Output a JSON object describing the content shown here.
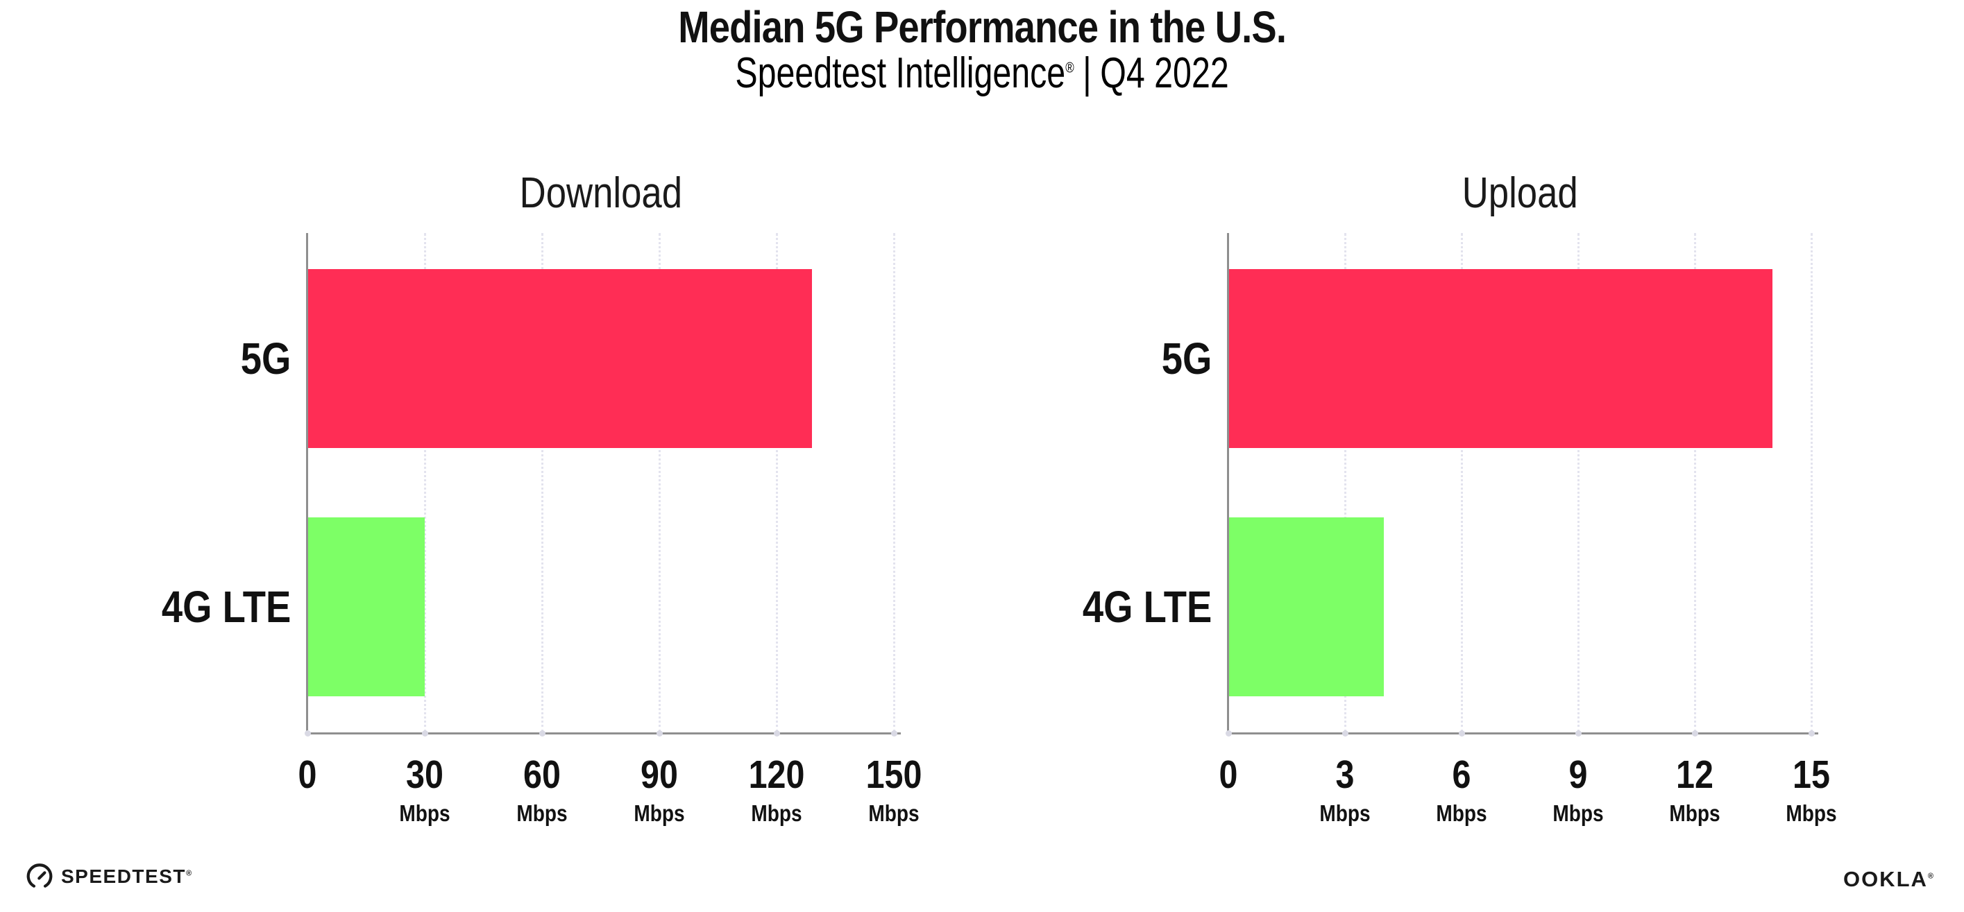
{
  "header": {
    "title": "Median 5G Performance in the U.S.",
    "subtitle_brand": "Speedtest Intelligence",
    "subtitle_reg": "®",
    "subtitle_sep": "|",
    "subtitle_period": "Q4 2022"
  },
  "colors": {
    "bar_5g": "#FF2D55",
    "bar_4g_lte": "#7DFF66",
    "axis": "#8F8F8F",
    "gridline": "#E3E3EE",
    "text": "#111111",
    "bars": [
      "#FF2D55",
      "#7DFF66"
    ]
  },
  "chart_data": [
    {
      "type": "bar",
      "orientation": "horizontal",
      "title": "Download",
      "categories": [
        "5G",
        "4G LTE"
      ],
      "values": [
        129,
        30
      ],
      "unit": "Mbps",
      "xlim": [
        0,
        150
      ],
      "xticks": [
        0,
        30,
        60,
        90,
        120,
        150
      ],
      "grid": "vertical-dotted",
      "legend": "none"
    },
    {
      "type": "bar",
      "orientation": "horizontal",
      "title": "Upload",
      "categories": [
        "5G",
        "4G LTE"
      ],
      "values": [
        14,
        4
      ],
      "unit": "Mbps",
      "xlim": [
        0,
        15
      ],
      "xticks": [
        0,
        3,
        6,
        9,
        12,
        15
      ],
      "grid": "vertical-dotted",
      "legend": "none"
    }
  ],
  "footer": {
    "speedtest_label": "SPEEDTEST",
    "speedtest_reg": "®",
    "ookla_label": "OOKLA",
    "ookla_reg": "®"
  }
}
